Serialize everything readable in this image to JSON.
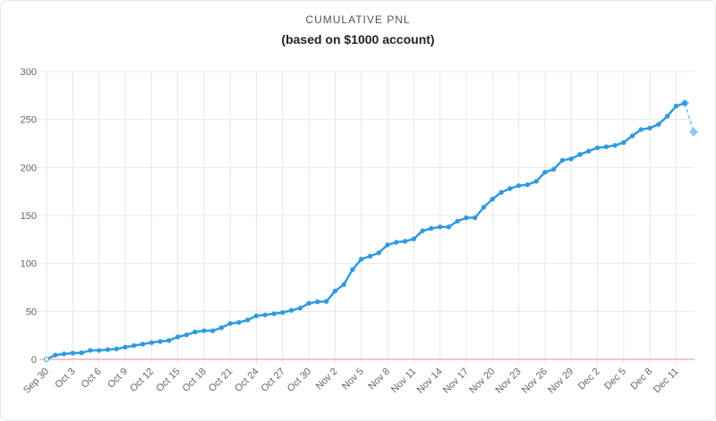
{
  "chart_data": {
    "type": "line",
    "title": "CUMULATIVE PNL",
    "subtitle": "(based on $1000 account)",
    "xlabel": "",
    "ylabel": "",
    "ylim": [
      0,
      300
    ],
    "yticks": [
      "0",
      "50",
      "100",
      "150",
      "200",
      "250",
      "300"
    ],
    "xticks": [
      "Sep 30",
      "Oct 3",
      "Oct 6",
      "Oct 9",
      "Oct 12",
      "Oct 15",
      "Oct 18",
      "Oct 21",
      "Oct 24",
      "Oct 27",
      "Oct 30",
      "Nov 2",
      "Nov 5",
      "Nov 8",
      "Nov 11",
      "Nov 14",
      "Nov 17",
      "Nov 20",
      "Nov 23",
      "Nov 26",
      "Nov 29",
      "Dec 2",
      "Dec 5",
      "Dec 8",
      "Dec 11"
    ],
    "x_range_days": [
      0,
      74
    ],
    "grid": true,
    "series": [
      {
        "name": "Cumulative PNL",
        "color": "#2f9be0",
        "values": [
          0,
          4.4,
          5.6,
          6.5,
          6.8,
          9.3,
          9.3,
          10.1,
          10.9,
          12.7,
          14.3,
          15.8,
          17.4,
          18.6,
          19.6,
          23.3,
          25.5,
          28.6,
          29.8,
          29.8,
          32.9,
          37.3,
          38.5,
          41,
          45.3,
          46.3,
          47.5,
          48.8,
          51,
          53.4,
          58.4,
          60,
          60.3,
          71.2,
          78,
          93.6,
          104.4,
          107.5,
          111,
          119.3,
          122,
          123,
          125.5,
          134,
          136.5,
          138,
          138,
          144,
          147.5,
          147.5,
          158.5,
          167,
          174,
          178,
          181,
          182,
          185.5,
          195,
          198,
          207.5,
          209,
          213.5,
          217,
          220.5,
          221.5,
          223,
          226,
          233,
          239.5,
          241,
          245,
          253.5,
          264,
          267
        ]
      },
      {
        "name": "Projected",
        "color": "#8ec5ef",
        "dashed": true,
        "start_day": 73,
        "values": [
          267,
          237
        ]
      }
    ],
    "zero_line_color": "#e8a0a0"
  }
}
